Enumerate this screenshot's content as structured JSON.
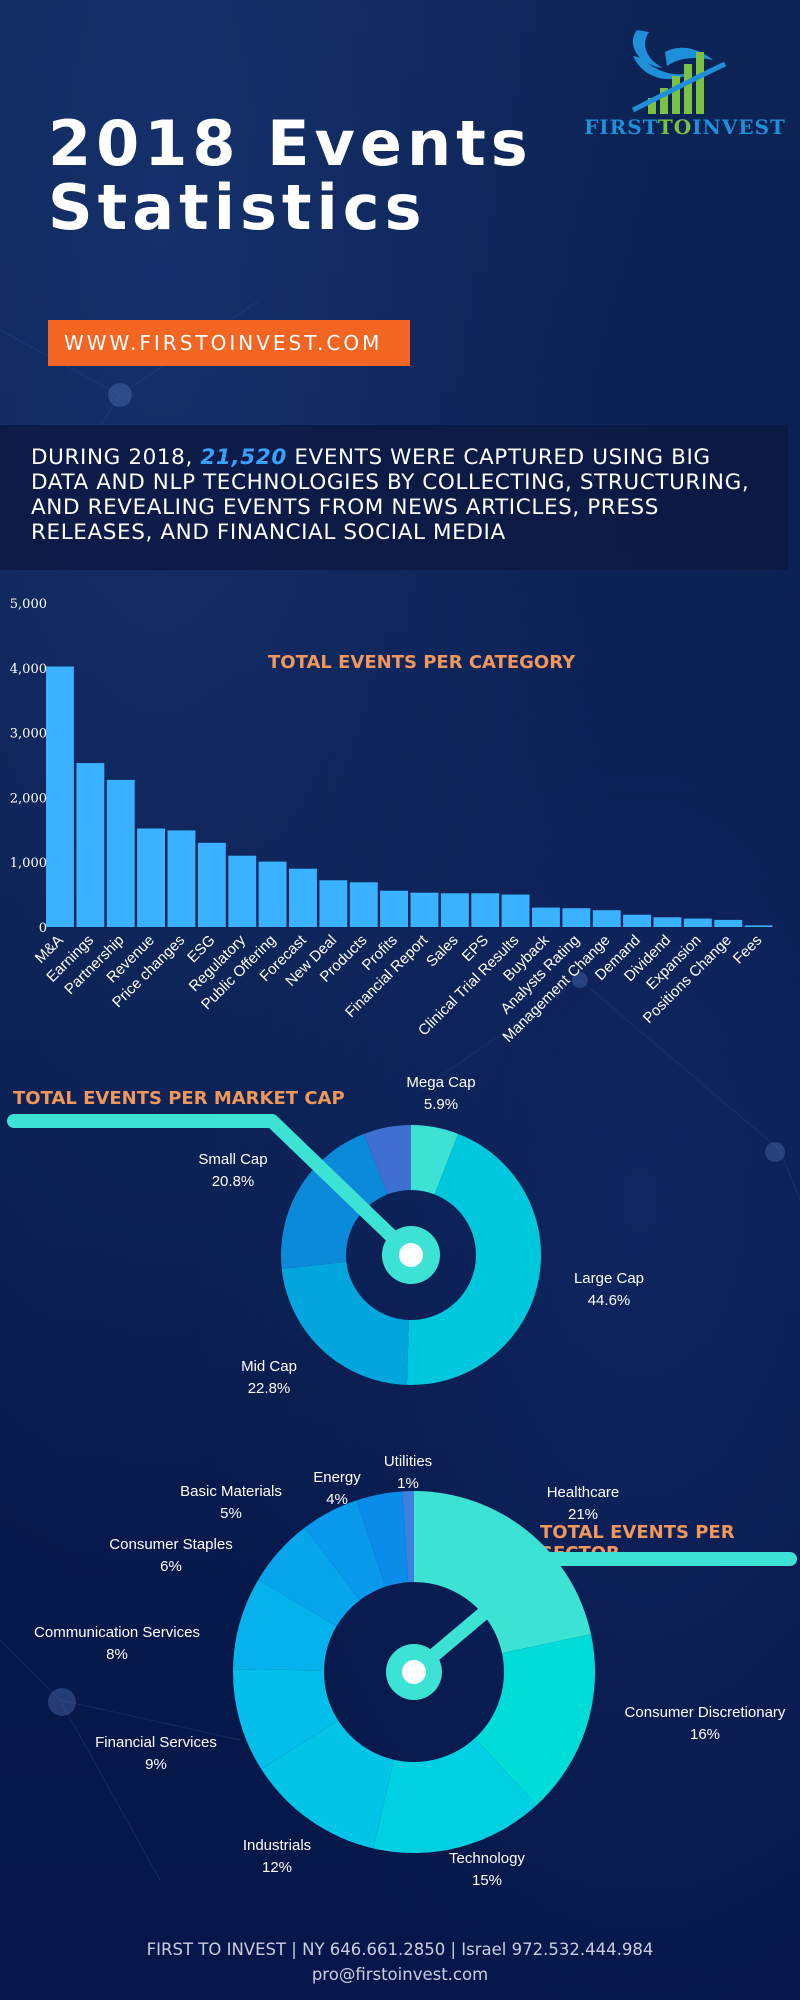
{
  "header": {
    "title_line1": "2018 Events",
    "title_line2": "Statistics",
    "url_button": "WWW.FIRSTOINVEST.COM"
  },
  "logo": {
    "text_part1": "FIRST",
    "text_part2": "TO",
    "text_part3": "INVEST",
    "colors": {
      "blue": "#1e8fd8",
      "green": "#7cc242"
    }
  },
  "intro": {
    "prefix": "During 2018, ",
    "highlight": "21,520",
    "suffix": " events were captured using big data and NLP technologies by collecting, structuring, and revealing events from news articles, press releases, and financial social media"
  },
  "colors": {
    "accent_orange": "#f26522",
    "section_title": "#f0975b",
    "bar": "#3bb2ff",
    "teal": "#3ce3d4"
  },
  "chart_data": [
    {
      "type": "bar",
      "title": "TOTAL EVENTS PER CATEGORY",
      "xlabel": "",
      "ylabel": "",
      "ylim": [
        0,
        5000
      ],
      "yticks": [
        0,
        1000,
        2000,
        3000,
        4000,
        5000
      ],
      "ytick_labels": [
        "0",
        "1,000",
        "2,000",
        "3,000",
        "4,000",
        "5,000"
      ],
      "grid": false,
      "categories": [
        "M&A",
        "Earnings",
        "Partnership",
        "Revenue",
        "Price changes",
        "ESG",
        "Regulatory",
        "Public Offering",
        "Forecast",
        "New Deal",
        "Products",
        "Profits",
        "Financial Report",
        "Sales",
        "EPS",
        "Clinical Trial Results",
        "Buyback",
        "Analysts Rating",
        "Management Change",
        "Demand",
        "Dividend",
        "Expansion",
        "Positions Change",
        "Fees"
      ],
      "values": [
        4020,
        2530,
        2270,
        1520,
        1490,
        1300,
        1100,
        1010,
        900,
        720,
        690,
        560,
        530,
        520,
        520,
        500,
        300,
        290,
        260,
        190,
        150,
        130,
        110,
        25
      ]
    },
    {
      "type": "pie",
      "title": "TOTAL EVENTS PER MARKET CAP",
      "donut": true,
      "slices": [
        {
          "label": "Mega Cap",
          "value": 5.9,
          "display": "5.9%",
          "color": "#3ce3d4"
        },
        {
          "label": "Large Cap",
          "value": 44.6,
          "display": "44.6%",
          "color": "#00c8dc"
        },
        {
          "label": "Mid Cap",
          "value": 22.8,
          "display": "22.8%",
          "color": "#02a6dc"
        },
        {
          "label": "Small Cap",
          "value": 20.8,
          "display": "20.8%",
          "color": "#0a8ad8"
        },
        {
          "label": "",
          "value": 5.9,
          "display": "",
          "color": "#3f6fd0"
        }
      ]
    },
    {
      "type": "pie",
      "title": "TOTAL EVENTS PER SECTOR",
      "donut": true,
      "slices": [
        {
          "label": "Healthcare",
          "value": 21,
          "display": "21%",
          "color": "#3ce3d4"
        },
        {
          "label": "Consumer Discretionary",
          "value": 16,
          "display": "16%",
          "color": "#00dcd8"
        },
        {
          "label": "Technology",
          "value": 15,
          "display": "15%",
          "color": "#00d0e2"
        },
        {
          "label": "Industrials",
          "value": 12,
          "display": "12%",
          "color": "#02c4e6"
        },
        {
          "label": "Financial Services",
          "value": 9,
          "display": "9%",
          "color": "#03bdea"
        },
        {
          "label": "Communication Services",
          "value": 8,
          "display": "8%",
          "color": "#05b2ec"
        },
        {
          "label": "Consumer Staples",
          "value": 6,
          "display": "6%",
          "color": "#07a6ec"
        },
        {
          "label": "Basic Materials",
          "value": 5,
          "display": "5%",
          "color": "#0999ec"
        },
        {
          "label": "Energy",
          "value": 4,
          "display": "4%",
          "color": "#0b8ce8"
        },
        {
          "label": "Utilities",
          "value": 1,
          "display": "1%",
          "color": "#3f7fe0"
        }
      ]
    }
  ],
  "footer": {
    "contact": "FIRST TO INVEST | NY 646.661.2850 | Israel 972.532.444.984",
    "email": "pro@firstoinvest.com"
  }
}
